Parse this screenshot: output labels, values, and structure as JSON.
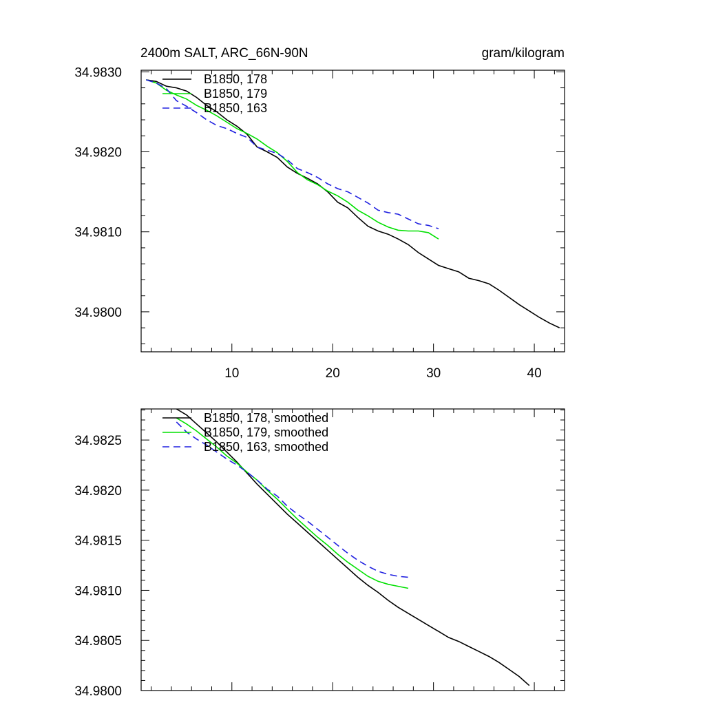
{
  "colors": {
    "series_178": "#000000",
    "series_179": "#00e000",
    "series_163": "#2020e0"
  },
  "chart_data": [
    {
      "type": "line",
      "title": "2400m SALT, ARC_66N-90N",
      "units": "gram/kilogram",
      "xlim": [
        1,
        43
      ],
      "ylim": [
        34.9795,
        34.98302
      ],
      "x_ticks": [
        10,
        20,
        30,
        40
      ],
      "x_tick_labels": [
        "10",
        "20",
        "30",
        "40"
      ],
      "y_ticks": [
        34.983,
        34.982,
        34.981,
        34.98
      ],
      "y_tick_labels": [
        "34.9830",
        "34.9820",
        "34.9810",
        "34.9800"
      ],
      "grid": false,
      "legend_position": "top-left",
      "series": [
        {
          "name": "B1850, 178",
          "color": "#000000",
          "dash": "solid",
          "x": [
            1.5,
            2.5,
            3.5,
            4.5,
            5.5,
            6.5,
            7.5,
            8.5,
            9.5,
            10.5,
            11.5,
            12.5,
            13.5,
            14.5,
            15.5,
            16.5,
            17.5,
            18.5,
            19.5,
            20.5,
            21.5,
            22.5,
            23.5,
            24.5,
            25.5,
            26.5,
            27.5,
            28.5,
            29.5,
            30.5,
            31.5,
            32.5,
            33.5,
            34.5,
            35.5,
            36.5,
            37.5,
            38.5,
            39.5,
            40.5,
            41.5,
            42.5
          ],
          "y": [
            34.9829,
            34.98288,
            34.98282,
            34.9828,
            34.98276,
            34.98268,
            34.98258,
            34.9825,
            34.9824,
            34.98232,
            34.98222,
            34.98206,
            34.982,
            34.98193,
            34.98181,
            34.98173,
            34.98167,
            34.9816,
            34.9815,
            34.98137,
            34.9813,
            34.98118,
            34.98107,
            34.98101,
            34.98097,
            34.98091,
            34.98084,
            34.98074,
            34.98066,
            34.98058,
            34.98054,
            34.9805,
            34.98042,
            34.98039,
            34.98035,
            34.98027,
            34.98018,
            34.98009,
            34.98001,
            34.97993,
            34.97986,
            34.9798
          ]
        },
        {
          "name": "B1850, 179",
          "color": "#00e000",
          "dash": "solid",
          "x": [
            1.5,
            2.5,
            3.5,
            4.5,
            5.5,
            6.5,
            7.5,
            8.5,
            9.5,
            10.5,
            11.5,
            12.5,
            13.5,
            14.5,
            15.5,
            16.5,
            17.5,
            18.5,
            19.5,
            20.5,
            21.5,
            22.5,
            23.5,
            24.5,
            25.5,
            26.5,
            27.5,
            28.5,
            29.5,
            30.5
          ],
          "y": [
            34.9829,
            34.98286,
            34.98277,
            34.98271,
            34.98266,
            34.98258,
            34.98252,
            34.98245,
            34.98237,
            34.98229,
            34.98223,
            34.98216,
            34.98207,
            34.98199,
            34.98188,
            34.98174,
            34.98165,
            34.98159,
            34.98151,
            34.98145,
            34.98137,
            34.98127,
            34.9812,
            34.98112,
            34.98106,
            34.98102,
            34.98101,
            34.98101,
            34.98099,
            34.98091
          ]
        },
        {
          "name": "B1850, 163",
          "color": "#2020e0",
          "dash": "dashed",
          "x": [
            1.5,
            2.5,
            3.5,
            4.5,
            5.5,
            6.5,
            7.5,
            8.5,
            9.5,
            10.5,
            11.5,
            12.5,
            13.5,
            14.5,
            15.5,
            16.5,
            17.5,
            18.5,
            19.5,
            20.5,
            21.5,
            22.5,
            23.5,
            24.5,
            25.5,
            26.5,
            27.5,
            28.5,
            29.5,
            30.5
          ],
          "y": [
            34.9829,
            34.98286,
            34.98279,
            34.98264,
            34.98257,
            34.98249,
            34.9824,
            34.98233,
            34.98229,
            34.98223,
            34.98218,
            34.98206,
            34.98202,
            34.98198,
            34.9819,
            34.98179,
            34.98174,
            34.98168,
            34.9816,
            34.98154,
            34.9815,
            34.98143,
            34.98136,
            34.98127,
            34.98124,
            34.98122,
            34.98116,
            34.9811,
            34.98108,
            34.98104
          ]
        }
      ]
    },
    {
      "type": "line",
      "title": "",
      "xlim": [
        1,
        43
      ],
      "ylim": [
        34.98,
        34.98281
      ],
      "x_ticks": [
        10,
        20,
        30,
        40
      ],
      "x_tick_labels": [],
      "y_ticks": [
        34.9825,
        34.982,
        34.9815,
        34.981,
        34.9805,
        34.98
      ],
      "y_tick_labels": [
        "34.9825",
        "34.9820",
        "34.9815",
        "34.9810",
        "34.9805",
        "34.9800"
      ],
      "grid": false,
      "legend_position": "top-left",
      "series": [
        {
          "name": "B1850, 178, smoothed",
          "color": "#000000",
          "dash": "solid",
          "x": [
            4.5,
            5.5,
            6.5,
            7.5,
            8.5,
            9.5,
            10.5,
            11.5,
            12.5,
            13.5,
            14.5,
            15.5,
            16.5,
            17.5,
            18.5,
            19.5,
            20.5,
            21.5,
            22.5,
            23.5,
            24.5,
            25.5,
            26.5,
            27.5,
            28.5,
            29.5,
            30.5,
            31.5,
            32.5,
            33.5,
            34.5,
            35.5,
            36.5,
            37.5,
            38.5,
            39.5
          ],
          "y": [
            34.98281,
            34.98275,
            34.98266,
            34.98257,
            34.98248,
            34.98238,
            34.98228,
            34.98217,
            34.98206,
            34.98196,
            34.98186,
            34.98176,
            34.98167,
            34.98158,
            34.98149,
            34.9814,
            34.98131,
            34.98122,
            34.98113,
            34.98105,
            34.98098,
            34.9809,
            34.98083,
            34.98077,
            34.98071,
            34.98065,
            34.98059,
            34.98053,
            34.98049,
            34.98044,
            34.98039,
            34.98034,
            34.98028,
            34.98021,
            34.98014,
            34.98005
          ]
        },
        {
          "name": "B1850, 179, smoothed",
          "color": "#00e000",
          "dash": "solid",
          "x": [
            4.5,
            5.5,
            6.5,
            7.5,
            8.5,
            9.5,
            10.5,
            11.5,
            12.5,
            13.5,
            14.5,
            15.5,
            16.5,
            17.5,
            18.5,
            19.5,
            20.5,
            21.5,
            22.5,
            23.5,
            24.5,
            25.5,
            26.5,
            27.5
          ],
          "y": [
            34.98272,
            34.98266,
            34.98259,
            34.98251,
            34.98243,
            34.98234,
            34.98227,
            34.98218,
            34.9821,
            34.982,
            34.98191,
            34.98181,
            34.98171,
            34.98162,
            34.98153,
            34.98145,
            34.98136,
            34.98128,
            34.98121,
            34.98114,
            34.98109,
            34.98106,
            34.98104,
            34.98102
          ]
        },
        {
          "name": "B1850, 163, smoothed",
          "color": "#2020e0",
          "dash": "dashed",
          "x": [
            4.5,
            5.5,
            6.5,
            7.5,
            8.5,
            9.5,
            10.5,
            11.5,
            12.5,
            13.5,
            14.5,
            15.5,
            16.5,
            17.5,
            18.5,
            19.5,
            20.5,
            21.5,
            22.5,
            23.5,
            24.5,
            25.5,
            26.5,
            27.5
          ],
          "y": [
            34.98268,
            34.98258,
            34.98251,
            34.98245,
            34.98238,
            34.98231,
            34.98225,
            34.98218,
            34.9821,
            34.98201,
            34.98194,
            34.98184,
            34.98176,
            34.98169,
            34.98161,
            34.98153,
            34.98145,
            34.98137,
            34.9813,
            34.98124,
            34.98119,
            34.98116,
            34.98114,
            34.98113
          ]
        }
      ]
    }
  ]
}
